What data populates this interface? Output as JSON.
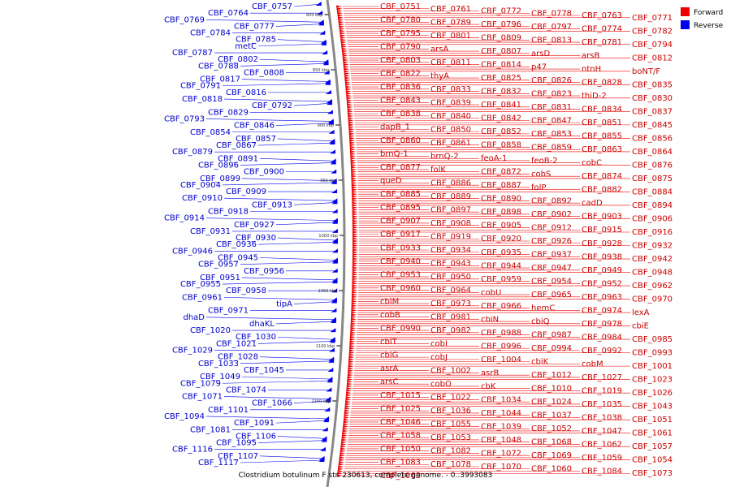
{
  "caption": "Clostridium botulinum F str. 230613, complete genome. - 0..3993083",
  "legend": [
    {
      "label": "Forward",
      "color": "#ee0000"
    },
    {
      "label": "Reverse",
      "color": "#0000ee"
    }
  ],
  "ticks": [
    "800 kbp",
    "850 kbp",
    "900 kbp",
    "950 kbp",
    "1000 kbp",
    "1050 kbp",
    "1100 kbp",
    "1150 kbp"
  ],
  "reverse_labels": [
    "CBF_0757",
    "CBF_0764",
    "CBF_0769",
    "CBF_0777",
    "CBF_0784",
    "CBF_0785",
    "metC",
    "CBF_0787",
    "CBF_0802",
    "CBF_0788",
    "CBF_0808",
    "CBF_0817",
    "CBF_0791",
    "CBF_0816",
    "CBF_0818",
    "CBF_0792",
    "CBF_0829",
    "CBF_0793",
    "CBF_0846",
    "CBF_0854",
    "CBF_0857",
    "CBF_0867",
    "CBF_0879",
    "CBF_0891",
    "CBF_0896",
    "CBF_0900",
    "CBF_0899",
    "CBF_0904",
    "CBF_0909",
    "CBF_0910",
    "CBF_0913",
    "CBF_0918",
    "CBF_0914",
    "CBF_0927",
    "CBF_0931",
    "CBF_0930",
    "CBF_0936",
    "CBF_0946",
    "CBF_0945",
    "CBF_0957",
    "CBF_0956",
    "CBF_0951",
    "CBF_0955",
    "CBF_0958",
    "CBF_0961",
    "tipA",
    "CBF_0971",
    "dhaD",
    "dhaKL",
    "CBF_1020",
    "CBF_1030",
    "CBF_1021",
    "CBF_1029",
    "CBF_1028",
    "CBF_1033",
    "CBF_1045",
    "CBF_1049",
    "CBF_1079",
    "CBF_1074",
    "CBF_1071",
    "CBF_1066",
    "CBF_1101",
    "CBF_1094",
    "CBF_1091",
    "CBF_1081",
    "CBF_1106",
    "CBF_1095",
    "CBF_1116",
    "CBF_1107",
    "CBF_1117"
  ],
  "forward_labels": [
    "CBF_0751",
    "CBF_0761",
    "CBF_0772",
    "CBF_0778",
    "CBF_0763",
    "CBF_0771",
    "CBF_0780",
    "CBF_0789",
    "CBF_0796",
    "CBF_0797",
    "CBF_0774",
    "CBF_0782",
    "CBF_0795",
    "CBF_0801",
    "CBF_0809",
    "CBF_0813",
    "CBF_0781",
    "CBF_0794",
    "CBF_0790",
    "arsA",
    "CBF_0807",
    "arsD",
    "arsB",
    "CBF_0812",
    "CBF_0803",
    "CBF_0811",
    "CBF_0814",
    "p47",
    "ntnH",
    "boNT/F",
    "CBF_0822",
    "thyA",
    "CBF_0825",
    "CBF_0826",
    "CBF_0828",
    "CBF_0835",
    "CBF_0836",
    "CBF_0833",
    "CBF_0832",
    "CBF_0823",
    "thiD-2",
    "CBF_0830",
    "CBF_0843",
    "CBF_0839",
    "CBF_0841",
    "CBF_0831",
    "CBF_0834",
    "CBF_0837",
    "CBF_0838",
    "CBF_0840",
    "CBF_0842",
    "CBF_0847",
    "CBF_0851",
    "CBF_0845",
    "dapB_1",
    "CBF_0850",
    "CBF_0852",
    "CBF_0853",
    "CBF_0855",
    "CBF_0856",
    "CBF_0860",
    "CBF_0861",
    "CBF_0858",
    "CBF_0859",
    "CBF_0863",
    "CBF_0864",
    "brnQ-1",
    "brnQ-2",
    "feoA-1",
    "feoB-2",
    "cobC",
    "CBF_0876",
    "CBF_0877",
    "folK",
    "CBF_0872",
    "cobS",
    "CBF_0874",
    "CBF_0875",
    "queD",
    "CBF_0886",
    "CBF_0887",
    "folP",
    "CBF_0882",
    "CBF_0884",
    "CBF_0885",
    "CBF_0889",
    "CBF_0890",
    "CBF_0892",
    "cadD",
    "CBF_0894",
    "CBF_0895",
    "CBF_0897",
    "CBF_0898",
    "CBF_0902",
    "CBF_0903",
    "CBF_0906",
    "CBF_0907",
    "CBF_0908",
    "CBF_0905",
    "CBF_0912",
    "CBF_0915",
    "CBF_0916",
    "CBF_0917",
    "CBF_0919",
    "CBF_0920",
    "CBF_0926",
    "CBF_0928",
    "CBF_0932",
    "CBF_0933",
    "CBF_0934",
    "CBF_0935",
    "CBF_0937",
    "CBF_0938",
    "CBF_0942",
    "CBF_0940",
    "CBF_0943",
    "CBF_0944",
    "CBF_0947",
    "CBF_0949",
    "CBF_0948",
    "CBF_0953",
    "CBF_0950",
    "CBF_0959",
    "CBF_0954",
    "CBF_0952",
    "CBF_0962",
    "CBF_0960",
    "CBF_0964",
    "cobU",
    "CBF_0965",
    "CBF_0963",
    "CBF_0970",
    "cbiM",
    "CBF_0973",
    "CBF_0966",
    "hemC",
    "CBF_0974",
    "lexA",
    "cobB",
    "CBF_0981",
    "cbiN",
    "cbiQ",
    "CBF_0978",
    "cbiE",
    "CBF_0990",
    "CBF_0982",
    "CBF_0988",
    "CBF_0987",
    "CBF_0984",
    "CBF_0985",
    "cbiT",
    "cobI",
    "CBF_0996",
    "CBF_0994",
    "CBF_0992",
    "CBF_0993",
    "cbiG",
    "cobJ",
    "CBF_1004",
    "cbiK",
    "cobM",
    "CBF_1001",
    "asrA",
    "CBF_1002",
    "asrB",
    "CBF_1012",
    "CBF_1027",
    "CBF_1023",
    "arsC",
    "cobO",
    "cbK",
    "CBF_1010",
    "CBF_1019",
    "CBF_1026",
    "CBF_1015",
    "CBF_1022",
    "CBF_1034",
    "CBF_1024",
    "CBF_1035",
    "CBF_1043",
    "CBF_1025",
    "CBF_1036",
    "CBF_1044",
    "CBF_1037",
    "CBF_1038",
    "CBF_1051",
    "CBF_1046",
    "CBF_1055",
    "CBF_1039",
    "CBF_1052",
    "CBF_1047",
    "CBF_1061",
    "CBF_1058",
    "CBF_1053",
    "CBF_1048",
    "CBF_1068",
    "CBF_1062",
    "CBF_1057",
    "CBF_1050",
    "CBF_1082",
    "CBF_1072",
    "CBF_1069",
    "CBF_1059",
    "CBF_1054",
    "CBF_1083",
    "CBF_1078",
    "CBF_1070",
    "CBF_1060",
    "CBF_1084",
    "CBF_1073",
    "CBF_1063"
  ]
}
